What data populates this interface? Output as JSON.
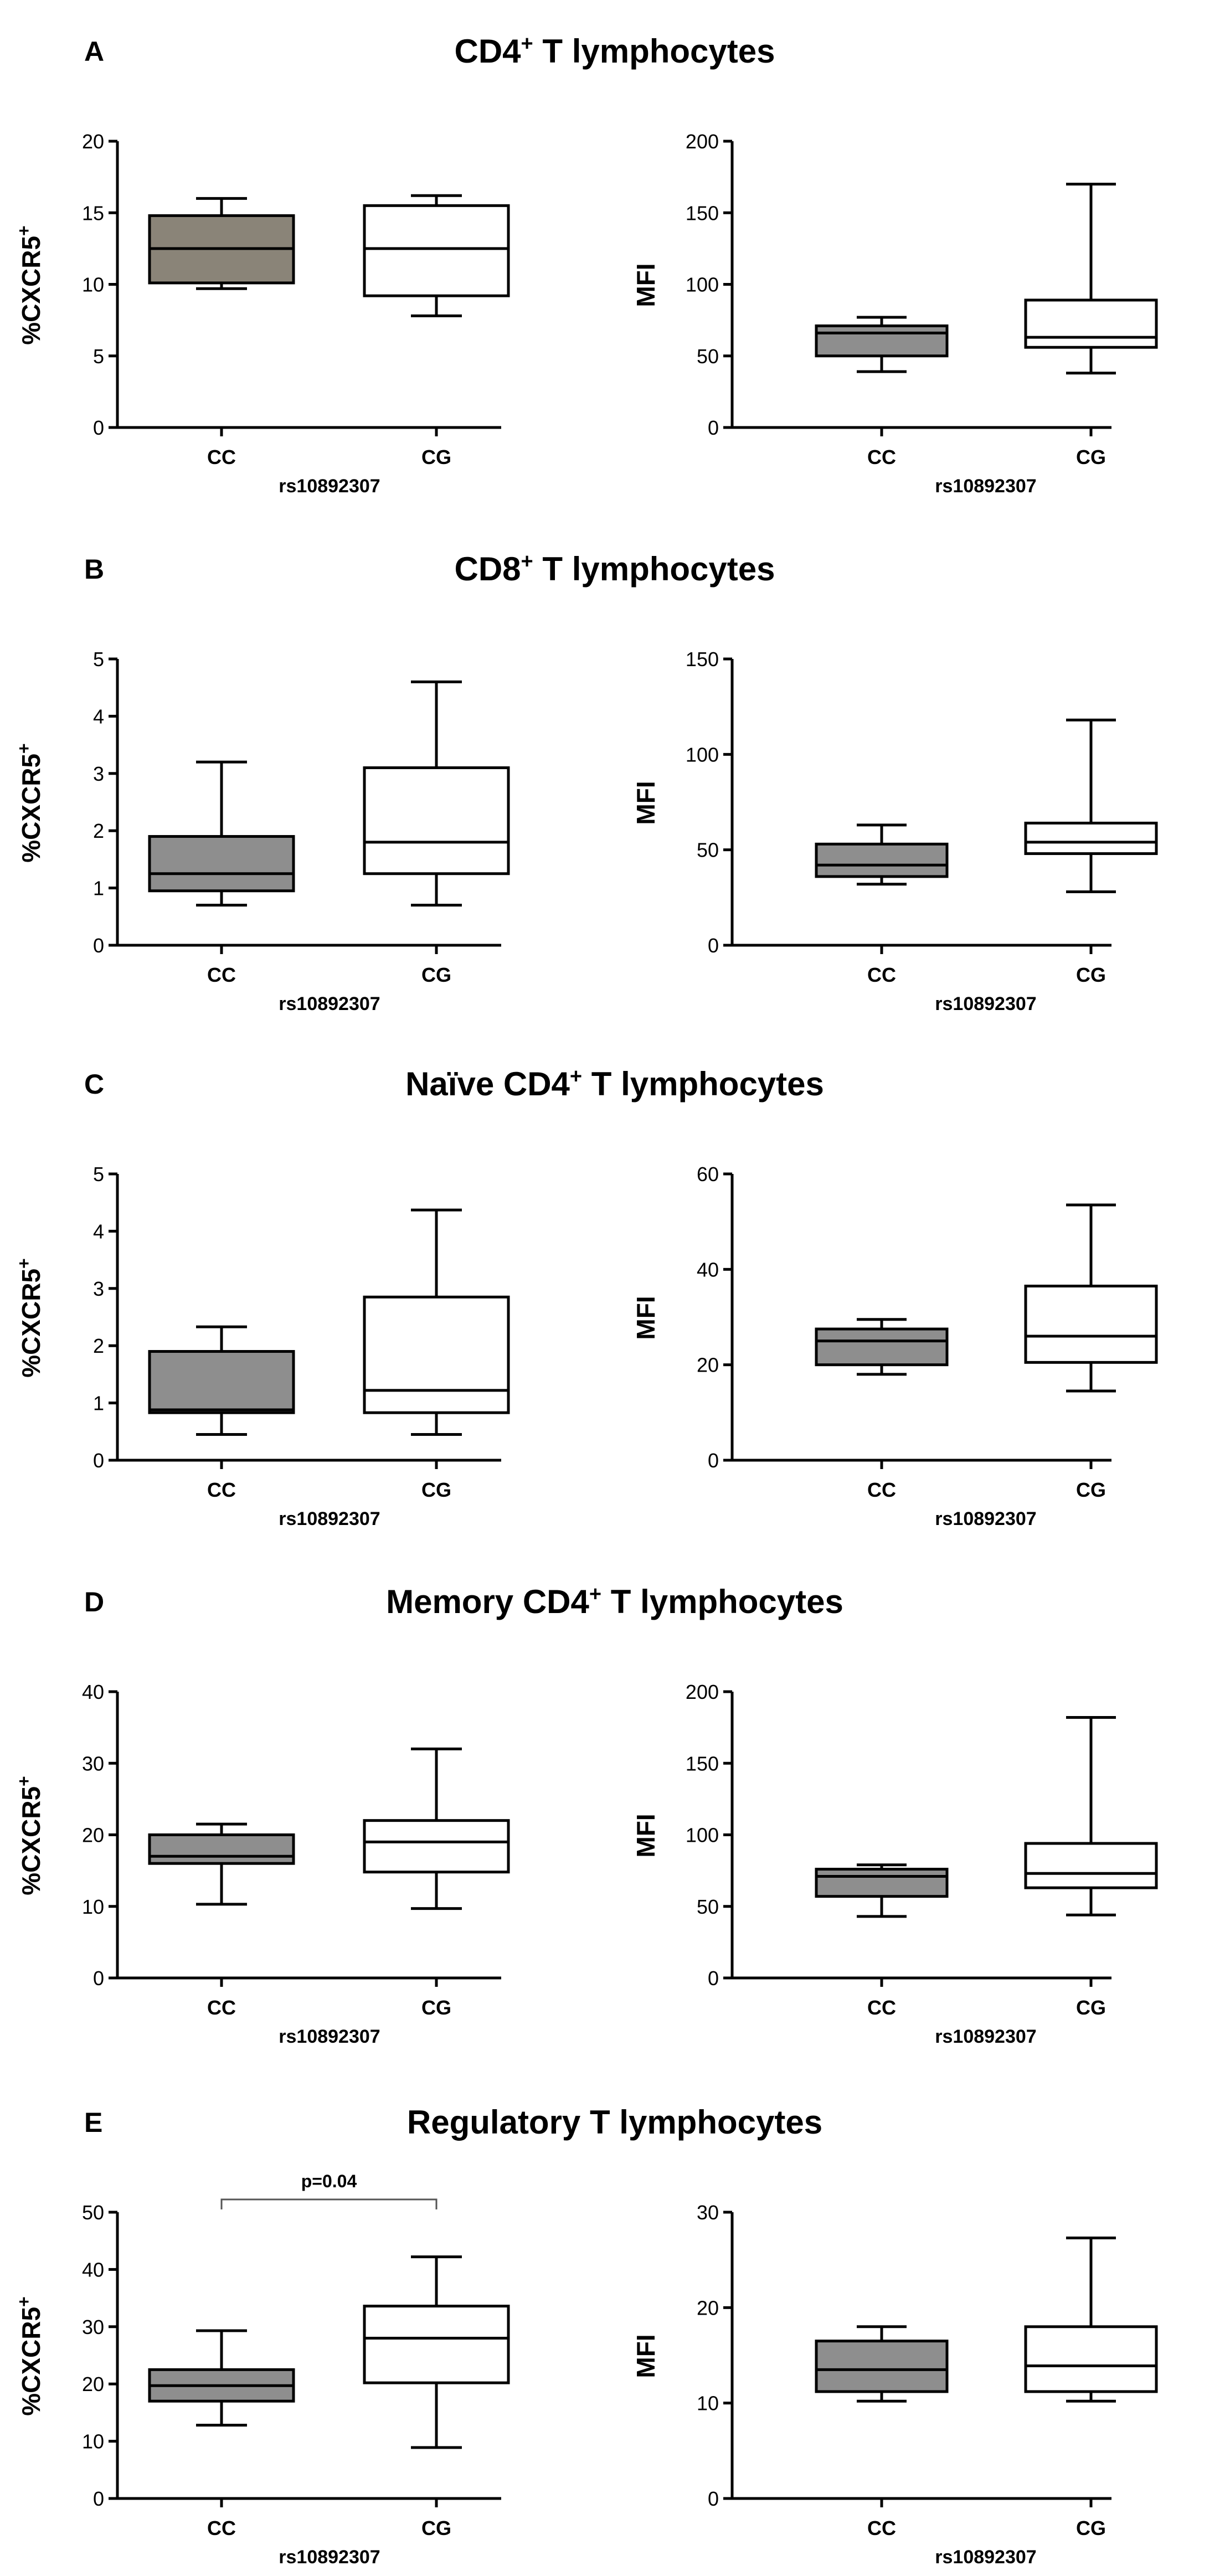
{
  "chart_data": [
    {
      "letter": "A",
      "title": "CD4",
      "title_sup": "+",
      "title_rest": " T lymphocytes",
      "plots": [
        {
          "type": "box",
          "ylabel": "%CXCR5",
          "ylabel_sup": "+",
          "xlabel": "rs10892307",
          "ylim": [
            0,
            20
          ],
          "ticks": [
            0,
            5,
            10,
            15,
            20
          ],
          "categories": [
            "CC",
            "CG"
          ],
          "boxes": [
            {
              "min": 9.7,
              "q1": 10.1,
              "median": 12.5,
              "q3": 14.8,
              "max": 16.0,
              "fill": "#8a8478"
            },
            {
              "min": 7.8,
              "q1": 9.2,
              "median": 12.5,
              "q3": 15.5,
              "max": 16.2,
              "fill": "#ffffff"
            }
          ]
        },
        {
          "type": "box",
          "ylabel": "MFI",
          "ylabel_sup": "",
          "xlabel": "rs10892307",
          "ylim": [
            0,
            200
          ],
          "ticks": [
            0,
            50,
            100,
            150,
            200
          ],
          "categories": [
            "CC",
            "CG"
          ],
          "boxes": [
            {
              "min": 39,
              "q1": 50,
              "median": 66,
              "q3": 71,
              "max": 77,
              "fill": "#8e8e8e"
            },
            {
              "min": 38,
              "q1": 56,
              "median": 63,
              "q3": 89,
              "max": 170,
              "fill": "#ffffff"
            }
          ]
        }
      ]
    },
    {
      "letter": "B",
      "title": "CD8",
      "title_sup": "+",
      "title_rest": " T lymphocytes",
      "plots": [
        {
          "type": "box",
          "ylabel": "%CXCR5",
          "ylabel_sup": "+",
          "xlabel": "rs10892307",
          "ylim": [
            0,
            5
          ],
          "ticks": [
            0,
            1,
            2,
            3,
            4,
            5
          ],
          "categories": [
            "CC",
            "CG"
          ],
          "boxes": [
            {
              "min": 0.7,
              "q1": 0.95,
              "median": 1.25,
              "q3": 1.9,
              "max": 3.2,
              "fill": "#8e8e8e"
            },
            {
              "min": 0.7,
              "q1": 1.25,
              "median": 1.8,
              "q3": 3.1,
              "max": 4.6,
              "fill": "#ffffff"
            }
          ]
        },
        {
          "type": "box",
          "ylabel": "MFI",
          "ylabel_sup": "",
          "xlabel": "rs10892307",
          "ylim": [
            0,
            150
          ],
          "ticks": [
            0,
            50,
            100,
            150
          ],
          "categories": [
            "CC",
            "CG"
          ],
          "boxes": [
            {
              "min": 32,
              "q1": 36,
              "median": 42,
              "q3": 53,
              "max": 63,
              "fill": "#8e8e8e"
            },
            {
              "min": 28,
              "q1": 48,
              "median": 54,
              "q3": 64,
              "max": 118,
              "fill": "#ffffff"
            }
          ]
        }
      ]
    },
    {
      "letter": "C",
      "title": "Naïve CD4",
      "title_sup": "+",
      "title_rest": " T lymphocytes",
      "plots": [
        {
          "type": "box",
          "ylabel": "%CXCR5",
          "ylabel_sup": "+",
          "xlabel": "rs10892307",
          "ylim": [
            0,
            5
          ],
          "ticks": [
            0,
            1,
            2,
            3,
            4,
            5
          ],
          "categories": [
            "CC",
            "CG"
          ],
          "boxes": [
            {
              "min": 0.45,
              "q1": 0.83,
              "median": 0.88,
              "q3": 1.9,
              "max": 2.33,
              "fill": "#8e8e8e"
            },
            {
              "min": 0.45,
              "q1": 0.83,
              "median": 1.22,
              "q3": 2.85,
              "max": 4.37,
              "fill": "#ffffff"
            }
          ]
        },
        {
          "type": "box",
          "ylabel": "MFI",
          "ylabel_sup": "",
          "xlabel": "rs10892307",
          "ylim": [
            0,
            60
          ],
          "ticks": [
            0,
            20,
            40,
            60
          ],
          "categories": [
            "CC",
            "CG"
          ],
          "boxes": [
            {
              "min": 18,
              "q1": 20,
              "median": 25,
              "q3": 27.5,
              "max": 29.5,
              "fill": "#8e8e8e"
            },
            {
              "min": 14.5,
              "q1": 20.5,
              "median": 26,
              "q3": 36.5,
              "max": 53.5,
              "fill": "#ffffff"
            }
          ]
        }
      ]
    },
    {
      "letter": "D",
      "title": "Memory CD4",
      "title_sup": "+",
      "title_rest": " T lymphocytes",
      "plots": [
        {
          "type": "box",
          "ylabel": "%CXCR5",
          "ylabel_sup": "+",
          "xlabel": "rs10892307",
          "ylim": [
            0,
            40
          ],
          "ticks": [
            0,
            10,
            20,
            30,
            40
          ],
          "categories": [
            "CC",
            "CG"
          ],
          "boxes": [
            {
              "min": 10.3,
              "q1": 16.0,
              "median": 17.0,
              "q3": 20.0,
              "max": 21.5,
              "fill": "#8e8e8e"
            },
            {
              "min": 9.7,
              "q1": 14.8,
              "median": 19.0,
              "q3": 22.0,
              "max": 32.0,
              "fill": "#ffffff"
            }
          ]
        },
        {
          "type": "box",
          "ylabel": "MFI",
          "ylabel_sup": "",
          "xlabel": "rs10892307",
          "ylim": [
            0,
            200
          ],
          "ticks": [
            0,
            50,
            100,
            150,
            200
          ],
          "categories": [
            "CC",
            "CG"
          ],
          "boxes": [
            {
              "min": 43,
              "q1": 57,
              "median": 71,
              "q3": 76,
              "max": 79,
              "fill": "#8e8e8e"
            },
            {
              "min": 44,
              "q1": 63,
              "median": 73,
              "q3": 94,
              "max": 182,
              "fill": "#ffffff"
            }
          ]
        }
      ]
    },
    {
      "letter": "E",
      "title": "Regulatory",
      "title_sup": "",
      "title_rest": " T lymphocytes",
      "plots": [
        {
          "type": "box",
          "ylabel": "%CXCR5",
          "ylabel_sup": "+",
          "xlabel": "rs10892307",
          "ylim": [
            0,
            50
          ],
          "ticks": [
            0,
            10,
            20,
            30,
            40,
            50
          ],
          "categories": [
            "CC",
            "CG"
          ],
          "annotation": "p=0.04",
          "boxes": [
            {
              "min": 12.8,
              "q1": 17.0,
              "median": 19.7,
              "q3": 22.5,
              "max": 29.3,
              "fill": "#8e8e8e"
            },
            {
              "min": 8.9,
              "q1": 20.2,
              "median": 28.0,
              "q3": 33.6,
              "max": 42.2,
              "fill": "#ffffff"
            }
          ]
        },
        {
          "type": "box",
          "ylabel": "MFI",
          "ylabel_sup": "",
          "xlabel": "rs10892307",
          "ylim": [
            0,
            30
          ],
          "ticks": [
            0,
            10,
            20,
            30
          ],
          "categories": [
            "CC",
            "CG"
          ],
          "boxes": [
            {
              "min": 10.2,
              "q1": 11.2,
              "median": 13.5,
              "q3": 16.5,
              "max": 18.0,
              "fill": "#8e8e8e"
            },
            {
              "min": 10.2,
              "q1": 11.2,
              "median": 13.9,
              "q3": 18.0,
              "max": 27.3,
              "fill": "#ffffff"
            }
          ]
        }
      ]
    }
  ]
}
